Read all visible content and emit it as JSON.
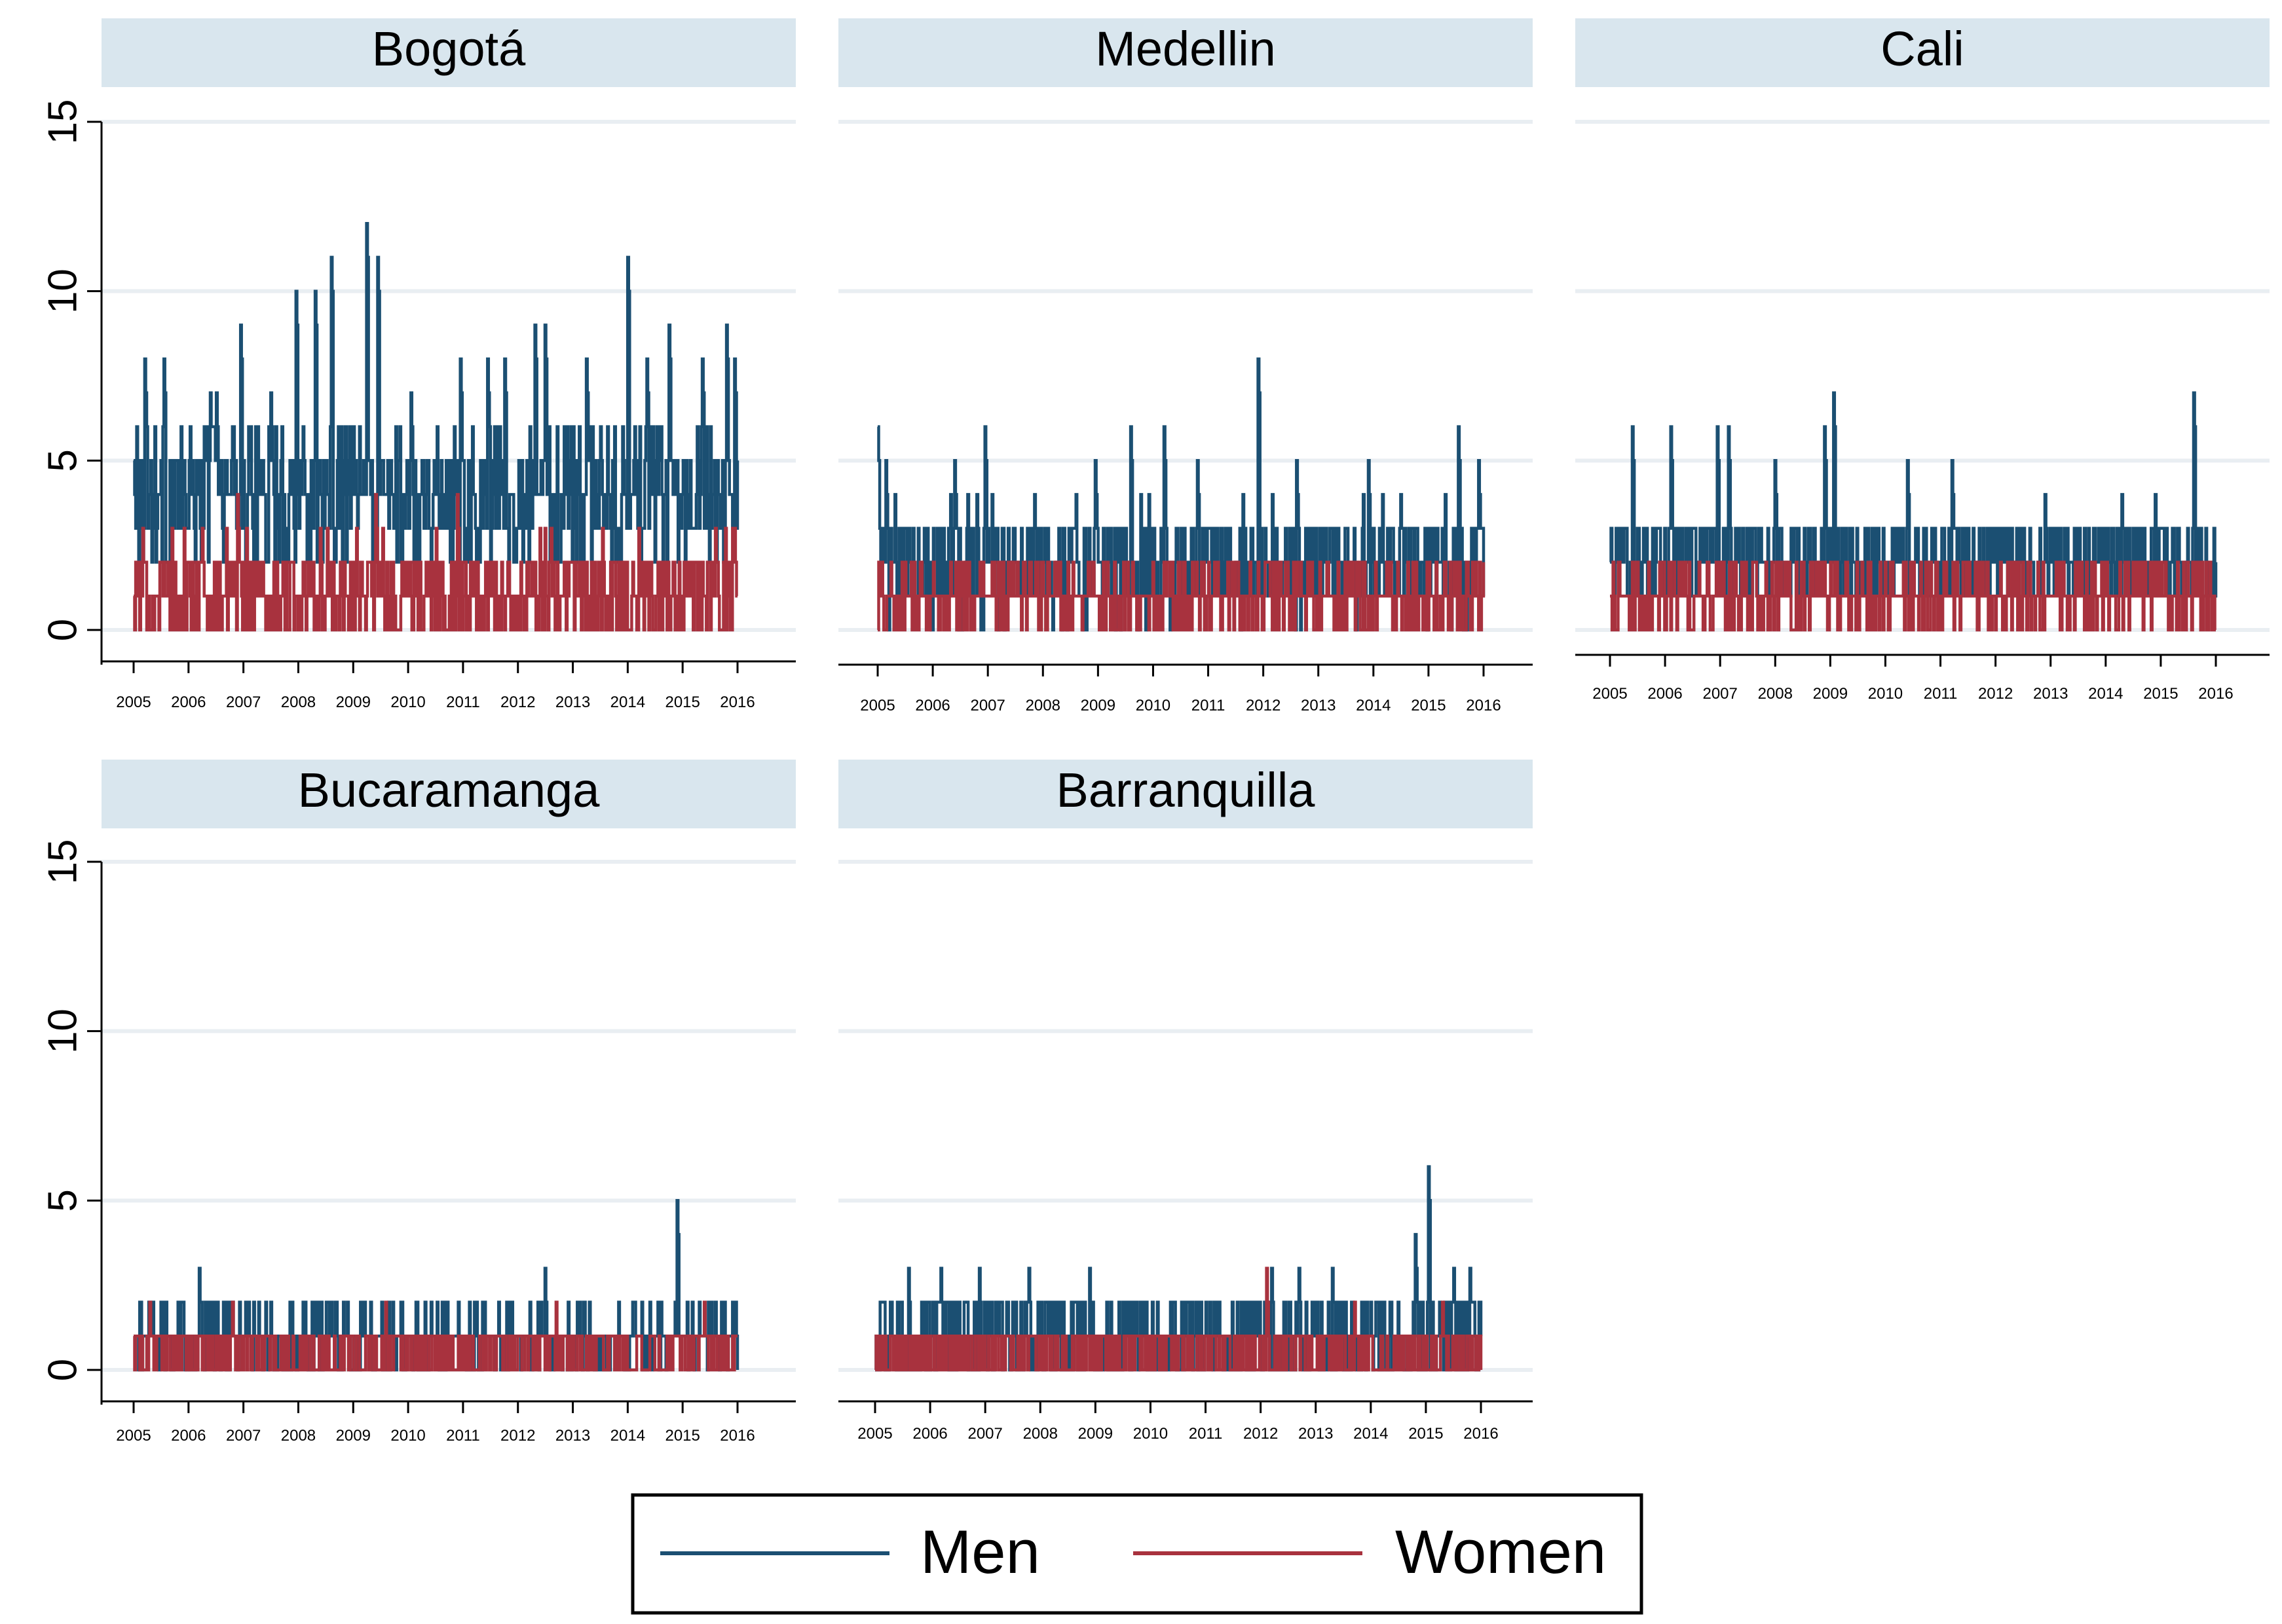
{
  "colors": {
    "men": "#1b4f72",
    "women": "#a8323e",
    "strip": "#d9e6ee",
    "grid": "#e9eef2",
    "axis": "#000000"
  },
  "legend": {
    "items": [
      {
        "label": "Men",
        "color": "#1b4f72"
      },
      {
        "label": "Women",
        "color": "#a8323e"
      }
    ]
  },
  "chart_data": [
    {
      "type": "line",
      "title": "Bogotá",
      "ylim": [
        0,
        15
      ],
      "yticks": [
        "0",
        "5",
        "10",
        "15"
      ],
      "xticks": [
        "2005",
        "2006",
        "2007",
        "2008",
        "2009",
        "2010",
        "2011",
        "2012",
        "2013",
        "2014",
        "2015",
        "2016"
      ],
      "x_range": [
        2005,
        2016
      ],
      "series": [
        {
          "name": "Men",
          "level": 4,
          "spread": 2,
          "peaks": [
            [
              2005.05,
              6
            ],
            [
              2005.2,
              8
            ],
            [
              2005.55,
              8
            ],
            [
              2006.4,
              7
            ],
            [
              2006.5,
              7
            ],
            [
              2006.95,
              9
            ],
            [
              2007.5,
              7
            ],
            [
              2007.95,
              10
            ],
            [
              2008.3,
              10
            ],
            [
              2008.6,
              11
            ],
            [
              2009.25,
              12
            ],
            [
              2009.45,
              11
            ],
            [
              2010.05,
              7
            ],
            [
              2010.95,
              8
            ],
            [
              2011.45,
              8
            ],
            [
              2011.75,
              8
            ],
            [
              2012.3,
              9
            ],
            [
              2012.5,
              9
            ],
            [
              2013.25,
              8
            ],
            [
              2014.0,
              11
            ],
            [
              2014.35,
              8
            ],
            [
              2014.75,
              9
            ],
            [
              2015.35,
              8
            ],
            [
              2015.8,
              9
            ],
            [
              2015.95,
              8
            ]
          ]
        },
        {
          "name": "Women",
          "level": 1,
          "spread": 1.6,
          "peaks": [
            [
              2006.9,
              4
            ],
            [
              2008.4,
              3
            ],
            [
              2009.4,
              4
            ],
            [
              2010.5,
              3
            ],
            [
              2010.9,
              4
            ],
            [
              2012.4,
              3
            ],
            [
              2014.2,
              3
            ],
            [
              2015.6,
              3
            ],
            [
              2015.95,
              3
            ]
          ]
        }
      ]
    },
    {
      "type": "line",
      "title": "Medellin",
      "ylim": [
        0,
        15
      ],
      "yticks": [],
      "xticks": [
        "2005",
        "2006",
        "2007",
        "2008",
        "2009",
        "2010",
        "2011",
        "2012",
        "2013",
        "2014",
        "2015",
        "2016"
      ],
      "x_range": [
        2005,
        2016
      ],
      "series": [
        {
          "name": "Men",
          "level": 2,
          "spread": 1.6,
          "peaks": [
            [
              2005.0,
              6
            ],
            [
              2005.15,
              5
            ],
            [
              2006.4,
              5
            ],
            [
              2006.95,
              6
            ],
            [
              2007.85,
              4
            ],
            [
              2008.95,
              5
            ],
            [
              2009.6,
              6
            ],
            [
              2010.2,
              6
            ],
            [
              2010.8,
              5
            ],
            [
              2011.9,
              8
            ],
            [
              2012.6,
              5
            ],
            [
              2013.9,
              5
            ],
            [
              2014.5,
              4
            ],
            [
              2015.55,
              6
            ],
            [
              2015.9,
              5
            ]
          ]
        },
        {
          "name": "Women",
          "level": 1,
          "spread": 1.0,
          "peaks": [
            [
              2006.5,
              2
            ],
            [
              2008.1,
              2
            ],
            [
              2010.2,
              2
            ],
            [
              2012.4,
              2
            ],
            [
              2014.3,
              2
            ],
            [
              2015.8,
              2
            ]
          ]
        }
      ]
    },
    {
      "type": "line",
      "title": "Cali",
      "ylim": [
        0,
        15
      ],
      "yticks": [],
      "xticks": [
        "2005",
        "2006",
        "2007",
        "2008",
        "2009",
        "2010",
        "2011",
        "2012",
        "2013",
        "2014",
        "2015",
        "2016"
      ],
      "x_range": [
        2005,
        2016
      ],
      "series": [
        {
          "name": "Men",
          "level": 2,
          "spread": 1.2,
          "peaks": [
            [
              2005.4,
              6
            ],
            [
              2006.1,
              6
            ],
            [
              2006.95,
              6
            ],
            [
              2007.15,
              6
            ],
            [
              2008.0,
              5
            ],
            [
              2008.9,
              6
            ],
            [
              2009.05,
              7
            ],
            [
              2010.4,
              5
            ],
            [
              2011.2,
              5
            ],
            [
              2012.9,
              4
            ],
            [
              2014.3,
              4
            ],
            [
              2014.9,
              4
            ],
            [
              2015.6,
              7
            ]
          ]
        },
        {
          "name": "Women",
          "level": 1,
          "spread": 1.0,
          "peaks": [
            [
              2006.3,
              2
            ],
            [
              2007.6,
              2
            ],
            [
              2009.3,
              2
            ],
            [
              2011.4,
              2
            ],
            [
              2013.1,
              2
            ],
            [
              2015.0,
              2
            ]
          ]
        }
      ]
    },
    {
      "type": "line",
      "title": "Bucaramanga",
      "ylim": [
        0,
        15
      ],
      "yticks": [
        "0",
        "5",
        "10",
        "15"
      ],
      "xticks": [
        "2005",
        "2006",
        "2007",
        "2008",
        "2009",
        "2010",
        "2011",
        "2012",
        "2013",
        "2014",
        "2015",
        "2016"
      ],
      "x_range": [
        2005,
        2016
      ],
      "series": [
        {
          "name": "Men",
          "level": 1,
          "spread": 0.8,
          "peaks": [
            [
              2005.3,
              2
            ],
            [
              2005.8,
              2
            ],
            [
              2006.2,
              3
            ],
            [
              2006.8,
              2
            ],
            [
              2007.4,
              2
            ],
            [
              2008.3,
              2
            ],
            [
              2009.2,
              2
            ],
            [
              2010.3,
              2
            ],
            [
              2011.2,
              2
            ],
            [
              2012.5,
              3
            ],
            [
              2013.3,
              2
            ],
            [
              2014.6,
              2
            ],
            [
              2014.9,
              5
            ],
            [
              2015.3,
              2
            ]
          ]
        },
        {
          "name": "Women",
          "level": 0.5,
          "spread": 0.8,
          "peaks": [
            [
              2005.3,
              2
            ],
            [
              2006.8,
              2
            ],
            [
              2009.6,
              2
            ],
            [
              2012.7,
              2
            ],
            [
              2015.4,
              2
            ]
          ]
        }
      ]
    },
    {
      "type": "line",
      "title": "Barranquilla",
      "ylim": [
        0,
        15
      ],
      "yticks": [],
      "xticks": [
        "2005",
        "2006",
        "2007",
        "2008",
        "2009",
        "2010",
        "2011",
        "2012",
        "2013",
        "2014",
        "2015",
        "2016"
      ],
      "x_range": [
        2005,
        2016
      ],
      "series": [
        {
          "name": "Men",
          "level": 1,
          "spread": 1.2,
          "peaks": [
            [
              2005.3,
              2
            ],
            [
              2005.6,
              3
            ],
            [
              2006.2,
              3
            ],
            [
              2006.9,
              3
            ],
            [
              2007.8,
              3
            ],
            [
              2008.9,
              3
            ],
            [
              2009.5,
              2
            ],
            [
              2012.2,
              3
            ],
            [
              2012.7,
              3
            ],
            [
              2013.3,
              3
            ],
            [
              2014.8,
              4
            ],
            [
              2015.05,
              6
            ],
            [
              2015.5,
              3
            ],
            [
              2015.8,
              3
            ]
          ]
        },
        {
          "name": "Women",
          "level": 0.5,
          "spread": 1.0,
          "peaks": [
            [
              2007.4,
              1
            ],
            [
              2012.1,
              3
            ],
            [
              2013.7,
              2
            ],
            [
              2015.3,
              2
            ]
          ]
        }
      ]
    }
  ]
}
